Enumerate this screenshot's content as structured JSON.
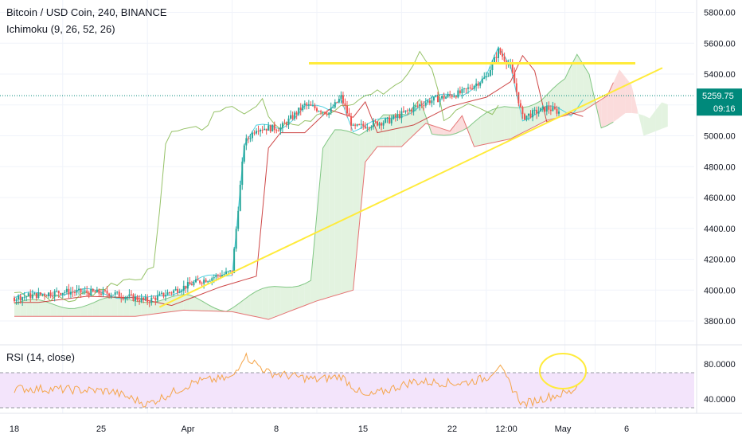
{
  "header": {
    "title": "Bitcoin / USD Coin, 240, BINANCE",
    "indicator": "Ichimoku (9, 26, 52, 26)"
  },
  "rsi": {
    "label": "RSI (14, close)",
    "ticks": [
      "80.0000",
      "40.0000"
    ],
    "upper": 70,
    "lower": 30
  },
  "price_axis": {
    "ticks": [
      "5800.00",
      "5600.00",
      "5400.00",
      "5200.00",
      "5000.00",
      "4800.00",
      "4600.00",
      "4400.00",
      "4200.00",
      "4000.00",
      "3800.00"
    ],
    "current_price": "5259.75",
    "countdown": "09:16"
  },
  "time_axis": {
    "ticks": [
      "18",
      "25",
      "Apr",
      "8",
      "15",
      "22",
      "12:00",
      "May",
      "6"
    ]
  },
  "colors": {
    "up": "#26a69a",
    "down": "#ef5350",
    "trendline": "#ffeb3b",
    "rsi_line": "#f5a54a",
    "rsi_band": "#f3e4fb",
    "price_line": "#00897b",
    "price_label_bg": "#00897b",
    "cloud_bull": "#e3f3e0",
    "cloud_bear": "#fbdcdc",
    "annotation": "#ffeb3b"
  },
  "chart_data": [
    {
      "type": "candlestick",
      "title": "Bitcoin / USD Coin, 240, BINANCE",
      "ylim": [
        3700,
        5900
      ],
      "y_ticks": [
        3800,
        4000,
        4200,
        4400,
        4600,
        4800,
        5000,
        5200,
        5400,
        5600,
        5800
      ],
      "x_labels": [
        "18",
        "25",
        "Apr",
        "8",
        "15",
        "22",
        "12:00",
        "May",
        "6"
      ],
      "close_series": [
        [
          "Mar 14",
          3950
        ],
        [
          "Mar 18",
          3990
        ],
        [
          "Mar 22",
          3980
        ],
        [
          "Mar 25",
          3930
        ],
        [
          "Mar 27",
          3990
        ],
        [
          "Mar 29",
          4050
        ],
        [
          "Apr 1",
          4120
        ],
        [
          "Apr 2",
          4950
        ],
        [
          "Apr 3",
          5050
        ],
        [
          "Apr 5",
          5050
        ],
        [
          "Apr 7",
          5200
        ],
        [
          "Apr 9",
          5150
        ],
        [
          "Apr 10",
          5250
        ],
        [
          "Apr 11",
          5050
        ],
        [
          "Apr 14",
          5100
        ],
        [
          "Apr 17",
          5220
        ],
        [
          "Apr 20",
          5280
        ],
        [
          "Apr 22",
          5380
        ],
        [
          "Apr 23",
          5550
        ],
        [
          "Apr 24",
          5450
        ],
        [
          "Apr 25",
          5120
        ],
        [
          "Apr 27",
          5180
        ],
        [
          "Apr 29",
          5130
        ],
        [
          "Apr 30",
          5259.75
        ]
      ],
      "last_price": 5259.75,
      "resistance_level": 5470,
      "support_trendline": [
        [
          "Mar 26",
          3890
        ],
        [
          "May 8",
          5440
        ]
      ]
    },
    {
      "type": "line",
      "name": "RSI (14, close)",
      "ylim": [
        25,
        95
      ],
      "y_ticks": [
        40,
        80
      ],
      "bands": [
        30,
        70
      ],
      "values": [
        [
          "Mar 14",
          52
        ],
        [
          "Mar 18",
          51
        ],
        [
          "Mar 22",
          49
        ],
        [
          "Mar 25",
          34
        ],
        [
          "Mar 29",
          60
        ],
        [
          "Apr 1",
          64
        ],
        [
          "Apr 2",
          90
        ],
        [
          "Apr 4",
          70
        ],
        [
          "Apr 8",
          62
        ],
        [
          "Apr 10",
          66
        ],
        [
          "Apr 12",
          42
        ],
        [
          "Apr 16",
          60
        ],
        [
          "Apr 20",
          58
        ],
        [
          "Apr 22",
          64
        ],
        [
          "Apr 23",
          78
        ],
        [
          "Apr 25",
          34
        ],
        [
          "Apr 27",
          42
        ],
        [
          "Apr 29",
          48
        ],
        [
          "Apr 30",
          62
        ]
      ]
    }
  ]
}
